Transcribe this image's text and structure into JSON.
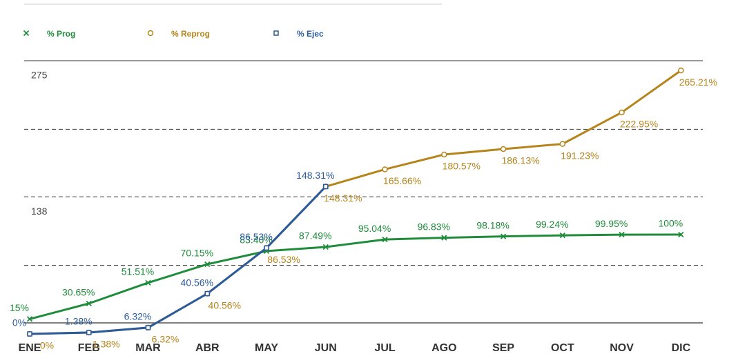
{
  "chart_data": {
    "type": "line",
    "categories": [
      "ENE",
      "FEB",
      "MAR",
      "ABR",
      "MAY",
      "JUN",
      "JUL",
      "AGO",
      "SEP",
      "OCT",
      "NOV",
      "DIC"
    ],
    "series": [
      {
        "name": "% Prog",
        "color": "#1e8c3a",
        "marker": "x",
        "values": [
          15,
          30.65,
          51.51,
          70.15,
          83.4,
          87.49,
          95.04,
          96.83,
          98.18,
          99.24,
          99.95,
          100
        ],
        "value_labels": [
          "15%",
          "30.65%",
          "51.51%",
          "70.15%",
          "83.40%",
          "87.49%",
          "95.04%",
          "96.83%",
          "98.18%",
          "99.24%",
          "99.95%",
          "100%"
        ]
      },
      {
        "name": "% Reprog",
        "color": "#b5841a",
        "marker": "circle",
        "values": [
          0,
          1.38,
          6.32,
          40.56,
          86.53,
          148.31,
          165.66,
          180.57,
          186.13,
          191.23,
          222.95,
          265.21
        ],
        "value_labels": [
          "0%",
          "1.38%",
          "6.32%",
          "40.56%",
          "86.53%",
          "148.31%",
          "165.66%",
          "180.57%",
          "186.13%",
          "191.23%",
          "222.95%",
          "265.21%"
        ]
      },
      {
        "name": "% Ejec",
        "color": "#2a5b9c",
        "marker": "square",
        "values": [
          0,
          1.38,
          6.32,
          40.56,
          86.53,
          148.31,
          null,
          null,
          null,
          null,
          null,
          null
        ],
        "value_labels": [
          "0%",
          "1.38%",
          "6.32%",
          "40.56%",
          "86.53%",
          "148.31%",
          null,
          null,
          null,
          null,
          null,
          null
        ]
      }
    ],
    "ylim": [
      0,
      275
    ],
    "yticks": [
      138,
      275
    ],
    "minor_grid": [
      69,
      206
    ]
  }
}
